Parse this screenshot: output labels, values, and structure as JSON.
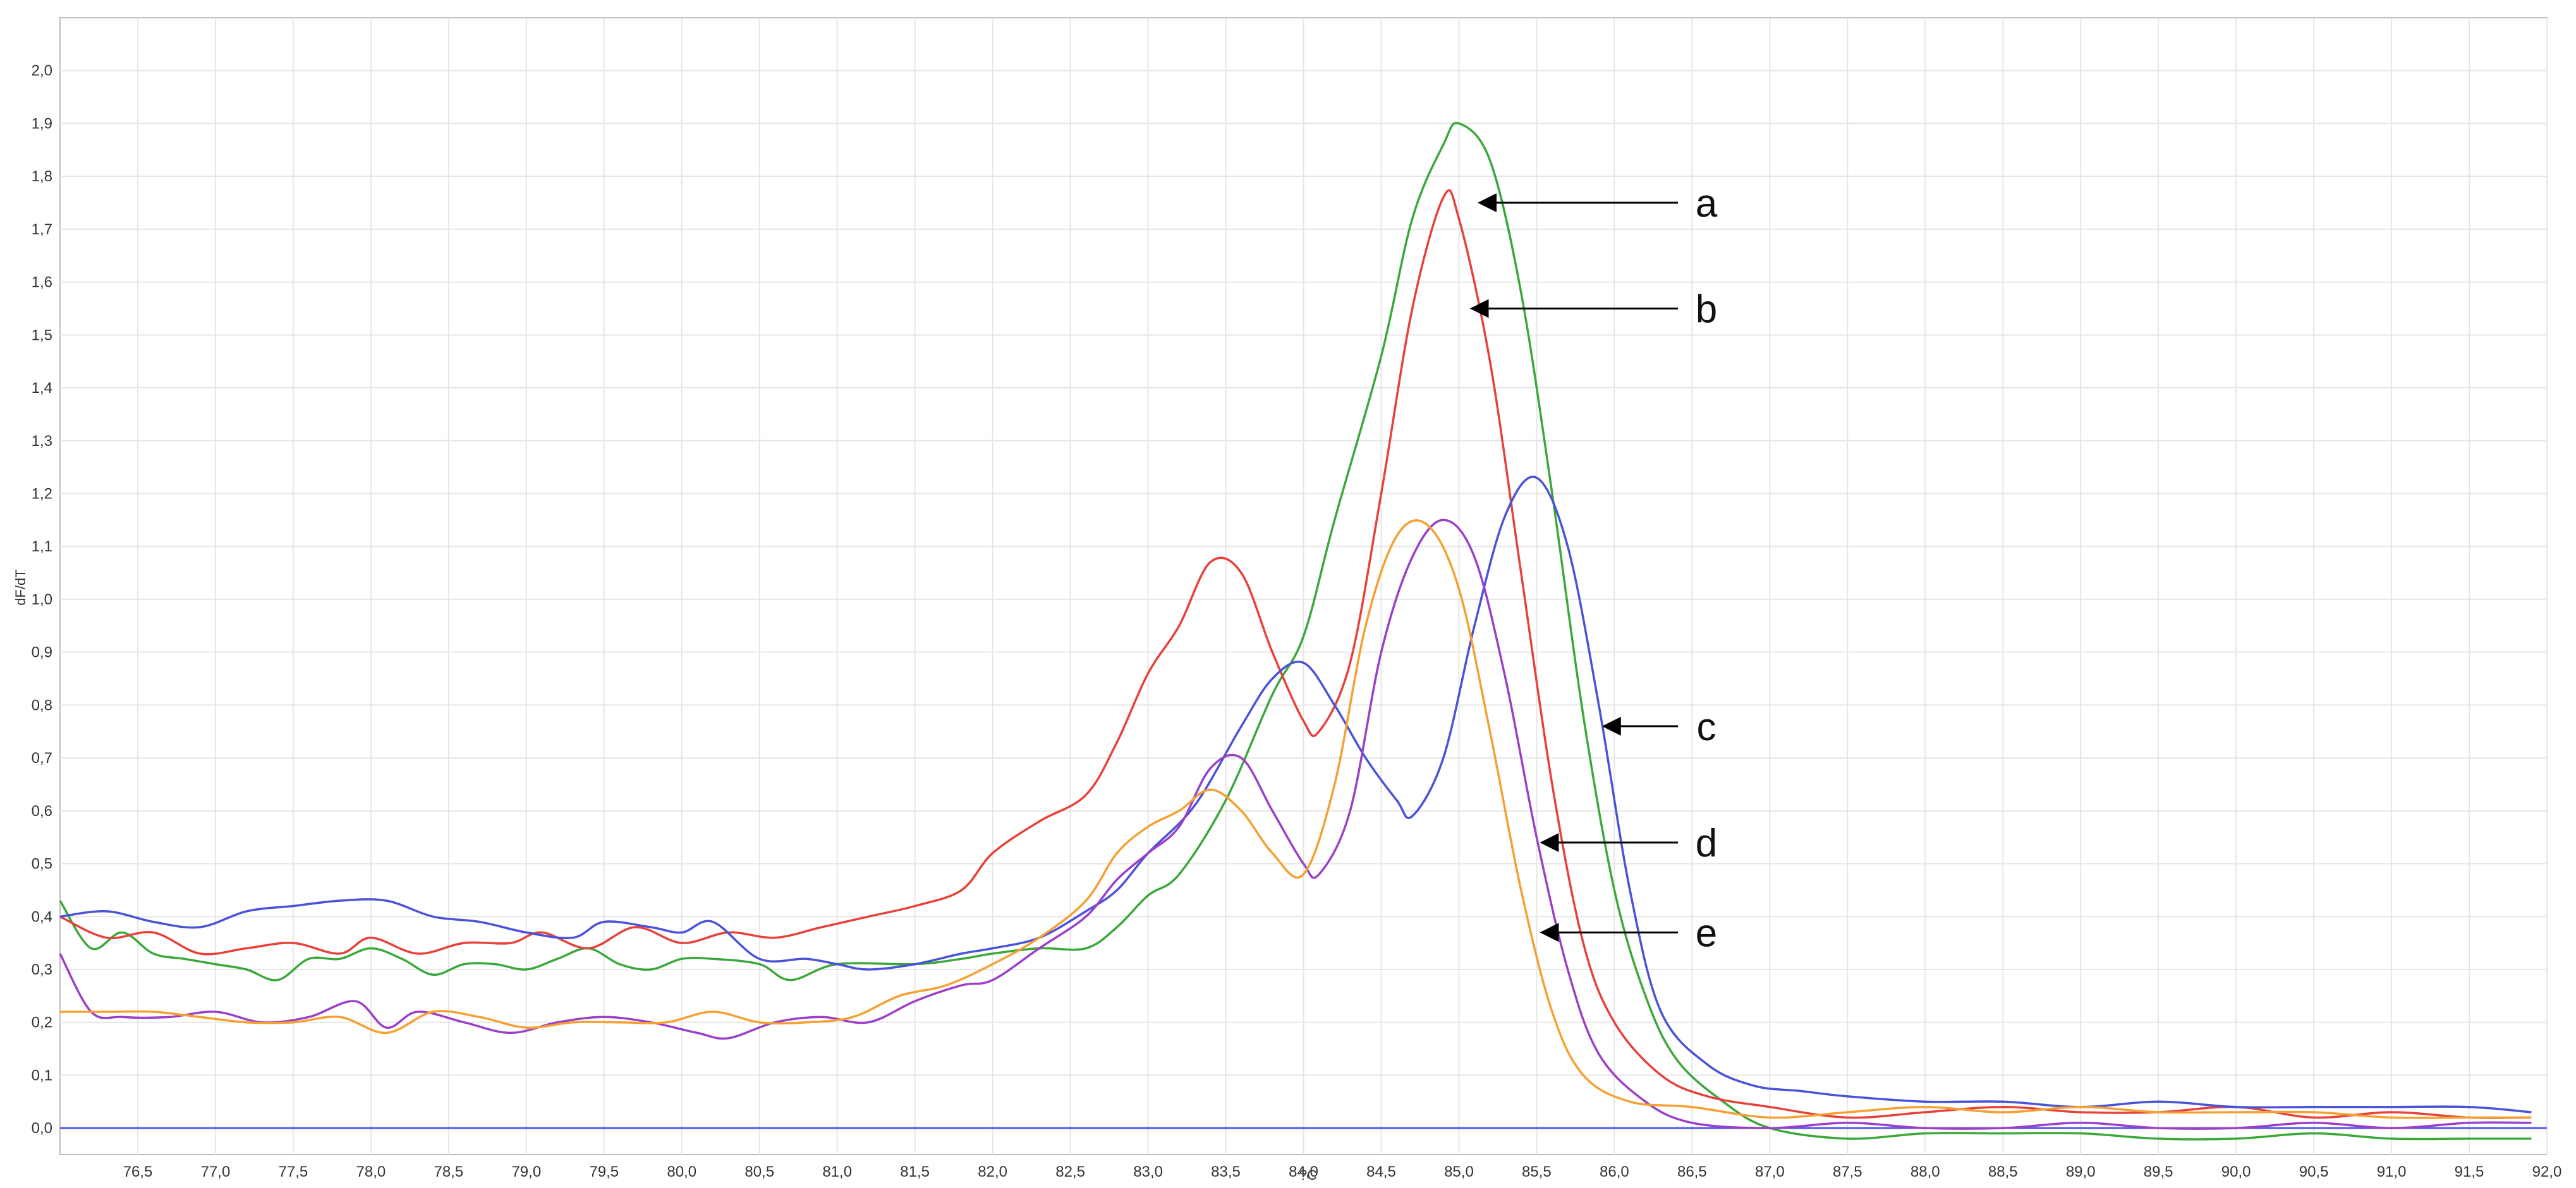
{
  "chart_data": {
    "type": "line",
    "title": "",
    "xlabel": "?C",
    "ylabel": "dF/dT",
    "xlim": [
      76.0,
      92.0
    ],
    "ylim": [
      -0.05,
      2.1
    ],
    "grid": true,
    "baseline": {
      "y": 0.0,
      "color": "#4f57e8"
    },
    "x_ticks": [
      "76,5",
      "77,0",
      "77,5",
      "78,0",
      "78,5",
      "79,0",
      "79,5",
      "80,0",
      "80,5",
      "81,0",
      "81,5",
      "82,0",
      "82,5",
      "83,0",
      "83,5",
      "84,0",
      "84,5",
      "85,0",
      "85,5",
      "86,0",
      "86,5",
      "87,0",
      "87,5",
      "88,0",
      "88,5",
      "89,0",
      "89,5",
      "90,0",
      "90,5",
      "91,0",
      "91,5",
      "92,0"
    ],
    "y_ticks": [
      "0,0",
      "0,1",
      "0,2",
      "0,3",
      "0,4",
      "0,5",
      "0,6",
      "0,7",
      "0,8",
      "0,9",
      "1,0",
      "1,1",
      "1,2",
      "1,3",
      "1,4",
      "1,5",
      "1,6",
      "1,7",
      "1,8",
      "1,9",
      "2,0"
    ],
    "series": [
      {
        "label": "a",
        "color": "#3aa83a",
        "points": [
          [
            76.0,
            0.43
          ],
          [
            76.2,
            0.34
          ],
          [
            76.4,
            0.37
          ],
          [
            76.6,
            0.33
          ],
          [
            76.8,
            0.32
          ],
          [
            77.0,
            0.31
          ],
          [
            77.2,
            0.3
          ],
          [
            77.4,
            0.28
          ],
          [
            77.6,
            0.32
          ],
          [
            77.8,
            0.32
          ],
          [
            78.0,
            0.34
          ],
          [
            78.2,
            0.32
          ],
          [
            78.4,
            0.29
          ],
          [
            78.6,
            0.31
          ],
          [
            78.8,
            0.31
          ],
          [
            79.0,
            0.3
          ],
          [
            79.2,
            0.32
          ],
          [
            79.4,
            0.34
          ],
          [
            79.6,
            0.31
          ],
          [
            79.8,
            0.3
          ],
          [
            80.0,
            0.32
          ],
          [
            80.2,
            0.32
          ],
          [
            80.5,
            0.31
          ],
          [
            80.7,
            0.28
          ],
          [
            81.0,
            0.31
          ],
          [
            81.5,
            0.31
          ],
          [
            81.8,
            0.32
          ],
          [
            82.0,
            0.33
          ],
          [
            82.3,
            0.34
          ],
          [
            82.6,
            0.34
          ],
          [
            82.8,
            0.38
          ],
          [
            83.0,
            0.44
          ],
          [
            83.2,
            0.48
          ],
          [
            83.5,
            0.62
          ],
          [
            83.8,
            0.82
          ],
          [
            84.0,
            0.93
          ],
          [
            84.2,
            1.15
          ],
          [
            84.5,
            1.46
          ],
          [
            84.7,
            1.72
          ],
          [
            84.9,
            1.86
          ],
          [
            85.0,
            1.9
          ],
          [
            85.2,
            1.83
          ],
          [
            85.4,
            1.58
          ],
          [
            85.6,
            1.2
          ],
          [
            85.8,
            0.78
          ],
          [
            86.0,
            0.45
          ],
          [
            86.2,
            0.25
          ],
          [
            86.4,
            0.13
          ],
          [
            86.7,
            0.05
          ],
          [
            87.0,
            0.0
          ],
          [
            87.5,
            -0.02
          ],
          [
            88.0,
            -0.01
          ],
          [
            88.5,
            -0.01
          ],
          [
            89.0,
            -0.01
          ],
          [
            89.5,
            -0.02
          ],
          [
            90.0,
            -0.02
          ],
          [
            90.5,
            -0.01
          ],
          [
            91.0,
            -0.02
          ],
          [
            91.5,
            -0.02
          ],
          [
            91.9,
            -0.02
          ]
        ]
      },
      {
        "label": "b",
        "color": "#e8413a",
        "points": [
          [
            76.0,
            0.4
          ],
          [
            76.3,
            0.36
          ],
          [
            76.6,
            0.37
          ],
          [
            76.9,
            0.33
          ],
          [
            77.2,
            0.34
          ],
          [
            77.5,
            0.35
          ],
          [
            77.8,
            0.33
          ],
          [
            78.0,
            0.36
          ],
          [
            78.3,
            0.33
          ],
          [
            78.6,
            0.35
          ],
          [
            78.9,
            0.35
          ],
          [
            79.1,
            0.37
          ],
          [
            79.4,
            0.34
          ],
          [
            79.7,
            0.38
          ],
          [
            80.0,
            0.35
          ],
          [
            80.3,
            0.37
          ],
          [
            80.6,
            0.36
          ],
          [
            80.9,
            0.38
          ],
          [
            81.2,
            0.4
          ],
          [
            81.5,
            0.42
          ],
          [
            81.8,
            0.45
          ],
          [
            82.0,
            0.52
          ],
          [
            82.3,
            0.58
          ],
          [
            82.6,
            0.63
          ],
          [
            82.8,
            0.73
          ],
          [
            83.0,
            0.86
          ],
          [
            83.2,
            0.95
          ],
          [
            83.4,
            1.07
          ],
          [
            83.6,
            1.05
          ],
          [
            83.8,
            0.9
          ],
          [
            84.0,
            0.77
          ],
          [
            84.1,
            0.75
          ],
          [
            84.3,
            0.88
          ],
          [
            84.5,
            1.2
          ],
          [
            84.7,
            1.55
          ],
          [
            84.9,
            1.76
          ],
          [
            85.0,
            1.72
          ],
          [
            85.2,
            1.45
          ],
          [
            85.4,
            1.05
          ],
          [
            85.6,
            0.65
          ],
          [
            85.8,
            0.35
          ],
          [
            86.0,
            0.2
          ],
          [
            86.3,
            0.1
          ],
          [
            86.6,
            0.06
          ],
          [
            87.0,
            0.04
          ],
          [
            87.5,
            0.02
          ],
          [
            88.0,
            0.03
          ],
          [
            88.5,
            0.04
          ],
          [
            89.0,
            0.03
          ],
          [
            89.5,
            0.03
          ],
          [
            90.0,
            0.04
          ],
          [
            90.5,
            0.02
          ],
          [
            91.0,
            0.03
          ],
          [
            91.5,
            0.02
          ],
          [
            91.9,
            0.02
          ]
        ]
      },
      {
        "label": "c",
        "color": "#4a52d8",
        "points": [
          [
            76.0,
            0.4
          ],
          [
            76.3,
            0.41
          ],
          [
            76.6,
            0.39
          ],
          [
            76.9,
            0.38
          ],
          [
            77.2,
            0.41
          ],
          [
            77.5,
            0.42
          ],
          [
            77.8,
            0.43
          ],
          [
            78.1,
            0.43
          ],
          [
            78.4,
            0.4
          ],
          [
            78.7,
            0.39
          ],
          [
            79.0,
            0.37
          ],
          [
            79.3,
            0.36
          ],
          [
            79.5,
            0.39
          ],
          [
            79.8,
            0.38
          ],
          [
            80.0,
            0.37
          ],
          [
            80.2,
            0.39
          ],
          [
            80.5,
            0.32
          ],
          [
            80.8,
            0.32
          ],
          [
            81.0,
            0.31
          ],
          [
            81.2,
            0.3
          ],
          [
            81.5,
            0.31
          ],
          [
            81.8,
            0.33
          ],
          [
            82.0,
            0.34
          ],
          [
            82.3,
            0.36
          ],
          [
            82.6,
            0.41
          ],
          [
            82.8,
            0.45
          ],
          [
            83.0,
            0.52
          ],
          [
            83.3,
            0.61
          ],
          [
            83.6,
            0.76
          ],
          [
            83.8,
            0.85
          ],
          [
            84.0,
            0.88
          ],
          [
            84.2,
            0.8
          ],
          [
            84.4,
            0.7
          ],
          [
            84.6,
            0.62
          ],
          [
            84.7,
            0.59
          ],
          [
            84.9,
            0.7
          ],
          [
            85.1,
            0.95
          ],
          [
            85.3,
            1.16
          ],
          [
            85.5,
            1.23
          ],
          [
            85.7,
            1.1
          ],
          [
            85.9,
            0.8
          ],
          [
            86.1,
            0.45
          ],
          [
            86.3,
            0.22
          ],
          [
            86.6,
            0.12
          ],
          [
            86.9,
            0.08
          ],
          [
            87.2,
            0.07
          ],
          [
            87.5,
            0.06
          ],
          [
            88.0,
            0.05
          ],
          [
            88.5,
            0.05
          ],
          [
            89.0,
            0.04
          ],
          [
            89.5,
            0.05
          ],
          [
            90.0,
            0.04
          ],
          [
            90.5,
            0.04
          ],
          [
            91.0,
            0.04
          ],
          [
            91.5,
            0.04
          ],
          [
            91.9,
            0.03
          ]
        ]
      },
      {
        "label": "d",
        "color": "#9b3fc8",
        "points": [
          [
            76.0,
            0.33
          ],
          [
            76.2,
            0.22
          ],
          [
            76.4,
            0.21
          ],
          [
            76.7,
            0.21
          ],
          [
            77.0,
            0.22
          ],
          [
            77.3,
            0.2
          ],
          [
            77.6,
            0.21
          ],
          [
            77.9,
            0.24
          ],
          [
            78.1,
            0.19
          ],
          [
            78.3,
            0.22
          ],
          [
            78.6,
            0.2
          ],
          [
            78.9,
            0.18
          ],
          [
            79.2,
            0.2
          ],
          [
            79.5,
            0.21
          ],
          [
            79.8,
            0.2
          ],
          [
            80.1,
            0.18
          ],
          [
            80.3,
            0.17
          ],
          [
            80.6,
            0.2
          ],
          [
            80.9,
            0.21
          ],
          [
            81.2,
            0.2
          ],
          [
            81.5,
            0.24
          ],
          [
            81.8,
            0.27
          ],
          [
            82.0,
            0.28
          ],
          [
            82.3,
            0.34
          ],
          [
            82.6,
            0.4
          ],
          [
            82.8,
            0.47
          ],
          [
            83.0,
            0.52
          ],
          [
            83.2,
            0.57
          ],
          [
            83.4,
            0.68
          ],
          [
            83.6,
            0.7
          ],
          [
            83.8,
            0.6
          ],
          [
            84.0,
            0.5
          ],
          [
            84.1,
            0.48
          ],
          [
            84.3,
            0.6
          ],
          [
            84.5,
            0.9
          ],
          [
            84.7,
            1.08
          ],
          [
            84.9,
            1.15
          ],
          [
            85.1,
            1.08
          ],
          [
            85.3,
            0.85
          ],
          [
            85.5,
            0.55
          ],
          [
            85.7,
            0.3
          ],
          [
            85.9,
            0.14
          ],
          [
            86.2,
            0.05
          ],
          [
            86.5,
            0.01
          ],
          [
            87.0,
            0.0
          ],
          [
            87.5,
            0.01
          ],
          [
            88.0,
            0.0
          ],
          [
            88.5,
            0.0
          ],
          [
            89.0,
            0.01
          ],
          [
            89.5,
            0.0
          ],
          [
            90.0,
            0.0
          ],
          [
            90.5,
            0.01
          ],
          [
            91.0,
            0.0
          ],
          [
            91.5,
            0.01
          ],
          [
            91.9,
            0.01
          ]
        ]
      },
      {
        "label": "e",
        "color": "#f5a030",
        "points": [
          [
            76.0,
            0.22
          ],
          [
            76.3,
            0.22
          ],
          [
            76.6,
            0.22
          ],
          [
            76.9,
            0.21
          ],
          [
            77.2,
            0.2
          ],
          [
            77.5,
            0.2
          ],
          [
            77.8,
            0.21
          ],
          [
            78.1,
            0.18
          ],
          [
            78.4,
            0.22
          ],
          [
            78.7,
            0.21
          ],
          [
            79.0,
            0.19
          ],
          [
            79.3,
            0.2
          ],
          [
            79.6,
            0.2
          ],
          [
            79.9,
            0.2
          ],
          [
            80.2,
            0.22
          ],
          [
            80.5,
            0.2
          ],
          [
            80.8,
            0.2
          ],
          [
            81.1,
            0.21
          ],
          [
            81.4,
            0.25
          ],
          [
            81.7,
            0.27
          ],
          [
            82.0,
            0.31
          ],
          [
            82.3,
            0.36
          ],
          [
            82.6,
            0.43
          ],
          [
            82.8,
            0.52
          ],
          [
            83.0,
            0.57
          ],
          [
            83.2,
            0.6
          ],
          [
            83.4,
            0.64
          ],
          [
            83.6,
            0.6
          ],
          [
            83.8,
            0.52
          ],
          [
            84.0,
            0.48
          ],
          [
            84.2,
            0.65
          ],
          [
            84.4,
            0.95
          ],
          [
            84.6,
            1.12
          ],
          [
            84.8,
            1.14
          ],
          [
            85.0,
            1.02
          ],
          [
            85.2,
            0.75
          ],
          [
            85.4,
            0.45
          ],
          [
            85.6,
            0.22
          ],
          [
            85.8,
            0.1
          ],
          [
            86.1,
            0.05
          ],
          [
            86.5,
            0.04
          ],
          [
            87.0,
            0.02
          ],
          [
            87.5,
            0.03
          ],
          [
            88.0,
            0.04
          ],
          [
            88.5,
            0.03
          ],
          [
            89.0,
            0.04
          ],
          [
            89.5,
            0.03
          ],
          [
            90.0,
            0.03
          ],
          [
            90.5,
            0.03
          ],
          [
            91.0,
            0.02
          ],
          [
            91.5,
            0.02
          ],
          [
            91.9,
            0.02
          ]
        ]
      }
    ],
    "annotations": [
      {
        "text": "a",
        "arrow_to": [
          85.1,
          1.75
        ]
      },
      {
        "text": "b",
        "arrow_to": [
          85.05,
          1.55
        ]
      },
      {
        "text": "c",
        "arrow_to": [
          85.9,
          0.76
        ]
      },
      {
        "text": "d",
        "arrow_to": [
          85.5,
          0.54
        ]
      },
      {
        "text": "e",
        "arrow_to": [
          85.5,
          0.37
        ]
      }
    ]
  }
}
